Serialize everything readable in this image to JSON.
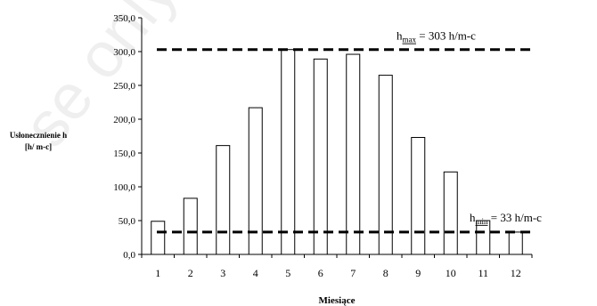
{
  "chart_data": {
    "type": "bar",
    "categories": [
      "1",
      "2",
      "3",
      "4",
      "5",
      "6",
      "7",
      "8",
      "9",
      "10",
      "11",
      "12"
    ],
    "values": [
      49,
      83,
      161,
      217,
      303,
      289,
      296,
      265,
      173,
      122,
      50,
      33
    ],
    "ylim": [
      0,
      350
    ],
    "yticks": [
      "0,0",
      "50,0",
      "100,0",
      "150,0",
      "200,0",
      "250,0",
      "300,0",
      "350,0"
    ],
    "ylabel_line1": "Usłonecznienie h",
    "ylabel_line2": "[h/ m-c]",
    "xlabel": "Miesiące",
    "grid": false,
    "reference_lines": [
      {
        "name": "hmax",
        "value": 303,
        "label_main": "h",
        "label_sub": "max",
        "label_rest": " = 303 h/m-c"
      },
      {
        "name": "hmin",
        "value": 33,
        "label_main": "h",
        "label_sub": "min",
        "label_rest": " = 33 h/m-c"
      }
    ],
    "bar_fill": "#ffffff",
    "bar_stroke": "#000000"
  },
  "watermark": "se only - distr"
}
